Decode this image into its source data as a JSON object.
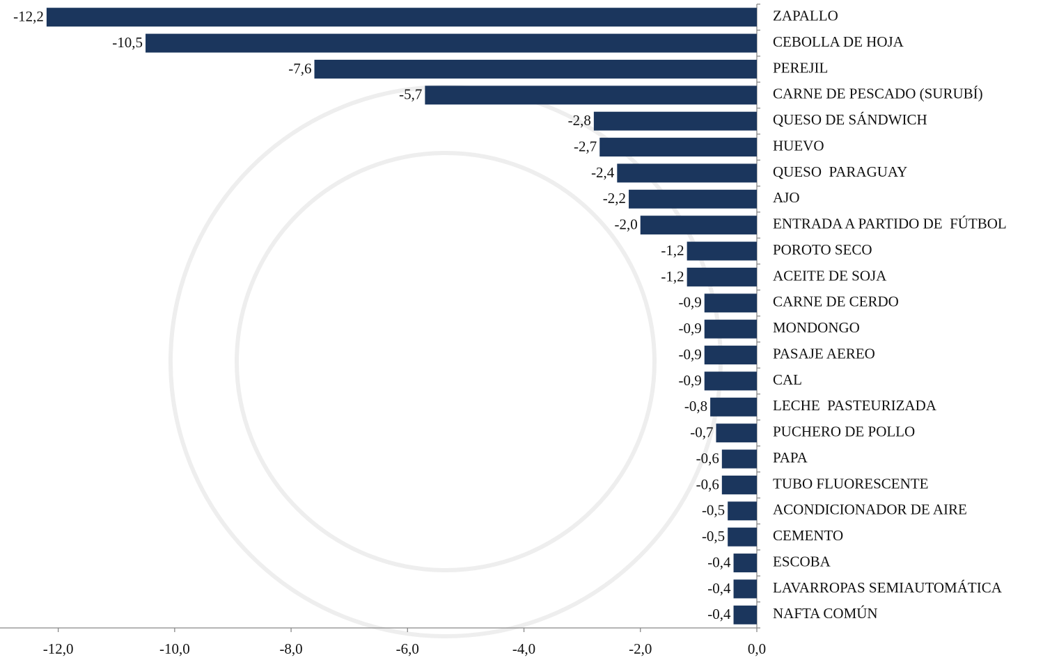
{
  "chart_data": {
    "type": "barh",
    "categories": [
      "ZAPALLO",
      "CEBOLLA DE HOJA",
      "PEREJIL",
      "CARNE DE PESCADO (SURUBÍ)",
      "QUESO DE SÁNDWICH",
      "HUEVO",
      "QUESO  PARAGUAY",
      "AJO",
      "ENTRADA A PARTIDO DE  FÚTBOL",
      "POROTO SECO",
      "ACEITE DE SOJA",
      "CARNE DE CERDO",
      "MONDONGO",
      "PASAJE AEREO",
      "CAL",
      "LECHE  PASTEURIZADA",
      "PUCHERO DE POLLO",
      "PAPA",
      "TUBO FLUORESCENTE",
      "ACONDICIONADOR DE AIRE",
      "CEMENTO",
      "ESCOBA",
      "LAVARROPAS SEMIAUTOMÁTICA",
      "NAFTA COMÚN"
    ],
    "values": [
      -12.2,
      -10.5,
      -7.6,
      -5.7,
      -2.8,
      -2.7,
      -2.4,
      -2.2,
      -2.0,
      -1.2,
      -1.2,
      -0.9,
      -0.9,
      -0.9,
      -0.9,
      -0.8,
      -0.7,
      -0.6,
      -0.6,
      -0.5,
      -0.5,
      -0.4,
      -0.4,
      -0.4
    ],
    "value_labels": [
      "-12,2",
      "-10,5",
      "-7,6",
      "-5,7",
      "-2,8",
      "-2,7",
      "-2,4",
      "-2,2",
      "-2,0",
      "-1,2",
      "-1,2",
      "-0,9",
      "-0,9",
      "-0,9",
      "-0,9",
      "-0,8",
      "-0,7",
      "-0,6",
      "-0,6",
      "-0,5",
      "-0,5",
      "-0,4",
      "-0,4",
      "-0,4"
    ],
    "color": "#1b365d",
    "xlim": [
      -13,
      0
    ],
    "xticks": [
      {
        "value": -12,
        "label": "-12,0"
      },
      {
        "value": -10,
        "label": "-10,0"
      },
      {
        "value": -8,
        "label": "-8,0"
      },
      {
        "value": -6,
        "label": "-6,0"
      },
      {
        "value": -4,
        "label": "-4,0"
      },
      {
        "value": -2,
        "label": "-2,0"
      },
      {
        "value": 0,
        "label": "0,0"
      }
    ]
  }
}
